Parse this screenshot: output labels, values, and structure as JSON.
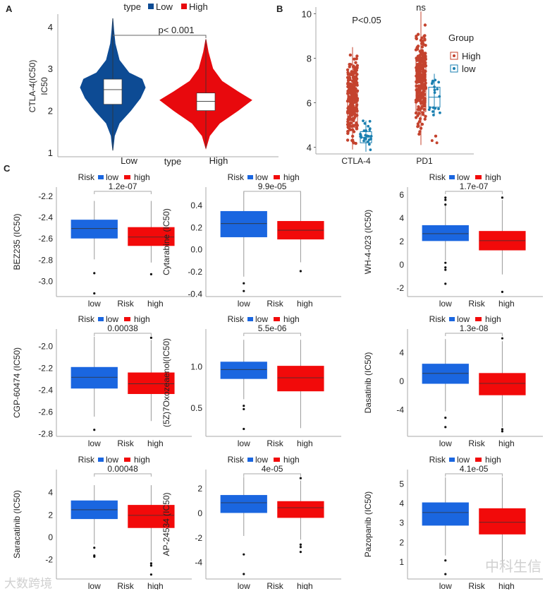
{
  "panel_labels": {
    "a": "A",
    "b": "B",
    "c": "C"
  },
  "watermarks": {
    "left": "大数跨境",
    "right": "中科生信"
  },
  "colors": {
    "a_low": "#0d4b94",
    "a_high": "#e8090d",
    "b_high": "#c4432e",
    "b_low": "#1a7fb0",
    "c_low": "#1a66e0",
    "c_high": "#f20a0a"
  },
  "chart_data": [
    {
      "id": "A",
      "type": "violin",
      "legend": {
        "title": "type",
        "items": [
          "Low",
          "High"
        ]
      },
      "ylabel": [
        "CTLA-4(IC50)",
        "IC50"
      ],
      "xlabel": "type",
      "categories": [
        "Low",
        "High"
      ],
      "yticks": [
        1,
        2,
        3,
        4
      ],
      "ylim": [
        0.9,
        4.3
      ],
      "pvalue": "p< 0.001",
      "groups": [
        {
          "name": "Low",
          "q1": 2.15,
          "median": 2.5,
          "q3": 2.75,
          "min": 1.05,
          "max": 4.2,
          "density": [
            [
              1.05,
              0
            ],
            [
              1.4,
              0.05
            ],
            [
              1.7,
              0.2
            ],
            [
              2.0,
              0.55
            ],
            [
              2.3,
              0.85
            ],
            [
              2.55,
              1
            ],
            [
              2.75,
              0.9
            ],
            [
              2.9,
              0.5
            ],
            [
              3.2,
              0.2
            ],
            [
              3.6,
              0.07
            ],
            [
              3.9,
              0.03
            ],
            [
              4.2,
              0
            ]
          ]
        },
        {
          "name": "High",
          "q1": 2.0,
          "median": 2.22,
          "q3": 2.42,
          "min": 1.1,
          "max": 3.7,
          "density": [
            [
              1.1,
              0
            ],
            [
              1.4,
              0.08
            ],
            [
              1.7,
              0.3
            ],
            [
              2.0,
              0.7
            ],
            [
              2.25,
              1
            ],
            [
              2.45,
              0.7
            ],
            [
              2.7,
              0.35
            ],
            [
              3.0,
              0.15
            ],
            [
              3.4,
              0.05
            ],
            [
              3.7,
              0
            ]
          ]
        }
      ]
    },
    {
      "id": "B",
      "type": "boxplot-jitter",
      "legend": {
        "title": "Group",
        "items": [
          "High",
          "low"
        ]
      },
      "categories": [
        "CTLA-4",
        "PD1"
      ],
      "yticks": [
        4,
        6,
        8,
        10
      ],
      "ylim": [
        3.7,
        10.3
      ],
      "annotations": [
        "P<0.05",
        "ns"
      ],
      "groups": [
        {
          "category": "CTLA-4",
          "group": "High",
          "n": 260,
          "min": 3.9,
          "q1": 4.9,
          "median": 5.7,
          "q3": 6.5,
          "max": 8.5
        },
        {
          "category": "CTLA-4",
          "group": "low",
          "n": 24,
          "min": 3.8,
          "q1": 4.2,
          "median": 4.45,
          "q3": 4.7,
          "max": 5.2
        },
        {
          "category": "PD1",
          "group": "High",
          "n": 260,
          "min": 4.1,
          "q1": 5.6,
          "median": 6.8,
          "q3": 8.0,
          "max": 10.1
        },
        {
          "category": "PD1",
          "group": "low",
          "n": 18,
          "min": 5.4,
          "q1": 5.8,
          "median": 6.25,
          "q3": 6.7,
          "max": 7.3,
          "outliers": [
            4.2,
            4.3,
            4.5,
            4.5
          ]
        }
      ]
    },
    {
      "id": "C1",
      "type": "boxplot",
      "ylabel": "BEZ235  (IC50)",
      "pvalue": "1.2e-07",
      "yticks": [
        "-2.2",
        "-2.4",
        "-2.6",
        "-2.8",
        "-3.0"
      ],
      "ylim": [
        -3.15,
        -2.12
      ],
      "low": {
        "q1": -2.6,
        "median": -2.51,
        "q3": -2.43,
        "whisker_low": -2.8,
        "whisker_high": -2.25,
        "outliers": [
          -2.93,
          -3.12
        ]
      },
      "high": {
        "q1": -2.67,
        "median": -2.59,
        "q3": -2.5,
        "whisker_low": -2.83,
        "whisker_high": -2.25,
        "outliers": [
          -2.94
        ]
      }
    },
    {
      "id": "C2",
      "type": "boxplot",
      "ylabel": "Cytarabine (IC50)",
      "pvalue": "9.9e-05",
      "yticks": [
        "0.4",
        "0.2",
        "0.0",
        "-0.2",
        "-0.4"
      ],
      "ylim": [
        -0.43,
        0.56
      ],
      "low": {
        "q1": 0.11,
        "median": 0.23,
        "q3": 0.34,
        "whisker_low": -0.25,
        "whisker_high": 0.52,
        "outliers": [
          -0.31,
          -0.38
        ]
      },
      "high": {
        "q1": 0.09,
        "median": 0.17,
        "q3": 0.25,
        "whisker_low": -0.12,
        "whisker_high": 0.52,
        "outliers": [
          -0.2
        ]
      }
    },
    {
      "id": "C3",
      "type": "boxplot",
      "ylabel": "WH-4-023 (IC50)",
      "pvalue": "1.7e-07",
      "yticks": [
        "6",
        "4",
        "2",
        "0",
        "-2"
      ],
      "ylim": [
        -2.8,
        6.6
      ],
      "low": {
        "q1": 2.0,
        "median": 2.6,
        "q3": 3.3,
        "whisker_low": 0.3,
        "whisker_high": 5.0,
        "outliers": [
          5.7,
          5.5,
          5.1,
          0.1,
          -0.3,
          -0.5,
          -1.7
        ]
      },
      "high": {
        "q1": 1.2,
        "median": 2.0,
        "q3": 2.8,
        "whisker_low": -0.9,
        "whisker_high": 5.5,
        "outliers": [
          5.7,
          -2.4
        ]
      }
    },
    {
      "id": "C4",
      "type": "boxplot",
      "ylabel": "CGP-60474 (IC50)",
      "pvalue": "0.00038",
      "yticks": [
        "-2.0",
        "-2.2",
        "-2.4",
        "-2.6",
        "-2.8"
      ],
      "ylim": [
        -2.83,
        -1.85
      ],
      "low": {
        "q1": -2.39,
        "median": -2.29,
        "q3": -2.2,
        "whisker_low": -2.65,
        "whisker_high": -1.92,
        "outliers": [
          -2.77
        ]
      },
      "high": {
        "q1": -2.44,
        "median": -2.35,
        "q3": -2.25,
        "whisker_low": -2.69,
        "whisker_high": -1.95,
        "outliers": [
          -1.93
        ]
      }
    },
    {
      "id": "C5",
      "type": "boxplot",
      "ylabel": "(5Z)7Oxozeaenol(IC50)",
      "pvalue": "5.5e-06",
      "yticks": [
        "1.0",
        "0.5"
      ],
      "ylim": [
        0.15,
        1.45
      ],
      "low": {
        "q1": 0.85,
        "median": 0.96,
        "q3": 1.05,
        "whisker_low": 0.6,
        "whisker_high": 1.32,
        "outliers": [
          0.52,
          0.48,
          0.24
        ]
      },
      "high": {
        "q1": 0.7,
        "median": 0.86,
        "q3": 1.0,
        "whisker_low": 0.25,
        "whisker_high": 1.32,
        "outliers": []
      }
    },
    {
      "id": "C6",
      "type": "boxplot",
      "ylabel": "Dasatinib (IC50)",
      "pvalue": "1.3e-08",
      "yticks": [
        "4",
        "0",
        "-4"
      ],
      "ylim": [
        -7.8,
        7.2
      ],
      "low": {
        "q1": -0.4,
        "median": 1.0,
        "q3": 2.3,
        "whisker_low": -4.3,
        "whisker_high": 5.8,
        "outliers": [
          -5.2,
          -6.5
        ]
      },
      "high": {
        "q1": -2.0,
        "median": -0.4,
        "q3": 1.0,
        "whisker_low": -6.5,
        "whisker_high": 5.5,
        "outliers": [
          5.9,
          -6.8,
          -7.1
        ]
      }
    },
    {
      "id": "C7",
      "type": "boxplot",
      "ylabel": "Saracatinib (IC50)",
      "pvalue": "0.00048",
      "yticks": [
        "4",
        "2",
        "0",
        "-2"
      ],
      "ylim": [
        -3.8,
        6.0
      ],
      "low": {
        "q1": 1.6,
        "median": 2.4,
        "q3": 3.2,
        "whisker_low": -0.7,
        "whisker_high": 4.6,
        "outliers": [
          -1.0,
          -1.7,
          -1.8
        ]
      },
      "high": {
        "q1": 0.8,
        "median": 1.9,
        "q3": 2.8,
        "whisker_low": -2.2,
        "whisker_high": 4.6,
        "outliers": [
          -2.4,
          -2.6,
          -3.4
        ]
      }
    },
    {
      "id": "C8",
      "type": "boxplot",
      "ylabel": "AP-24534 (IC50)",
      "pvalue": "4e-05",
      "yticks": [
        "2",
        "0",
        "-2",
        "-4"
      ],
      "ylim": [
        -5.4,
        3.5
      ],
      "low": {
        "q1": 0.0,
        "median": 0.8,
        "q3": 1.4,
        "whisker_low": -1.9,
        "whisker_high": 2.9,
        "outliers": [
          -3.4,
          -5.0
        ]
      },
      "high": {
        "q1": -0.4,
        "median": 0.4,
        "q3": 0.9,
        "whisker_low": -2.2,
        "whisker_high": 2.6,
        "outliers": [
          2.8,
          -2.6,
          -2.8,
          -3.2
        ]
      }
    },
    {
      "id": "C9",
      "type": "boxplot",
      "ylabel": "Pazopanib (IC50)",
      "pvalue": "4.1e-05",
      "yticks": [
        "5",
        "4",
        "3",
        "2",
        "1"
      ],
      "ylim": [
        0.1,
        5.7
      ],
      "low": {
        "q1": 2.85,
        "median": 3.5,
        "q3": 4.0,
        "whisker_low": 1.3,
        "whisker_high": 5.3,
        "outliers": [
          1.05,
          0.35
        ]
      },
      "high": {
        "q1": 2.4,
        "median": 3.0,
        "q3": 3.7,
        "whisker_low": 0.9,
        "whisker_high": 5.3,
        "outliers": []
      }
    }
  ],
  "c_common": {
    "legend_title": "Risk",
    "legend_items": [
      "low",
      "high"
    ],
    "xlabels": [
      "low",
      "Risk",
      "high"
    ]
  }
}
